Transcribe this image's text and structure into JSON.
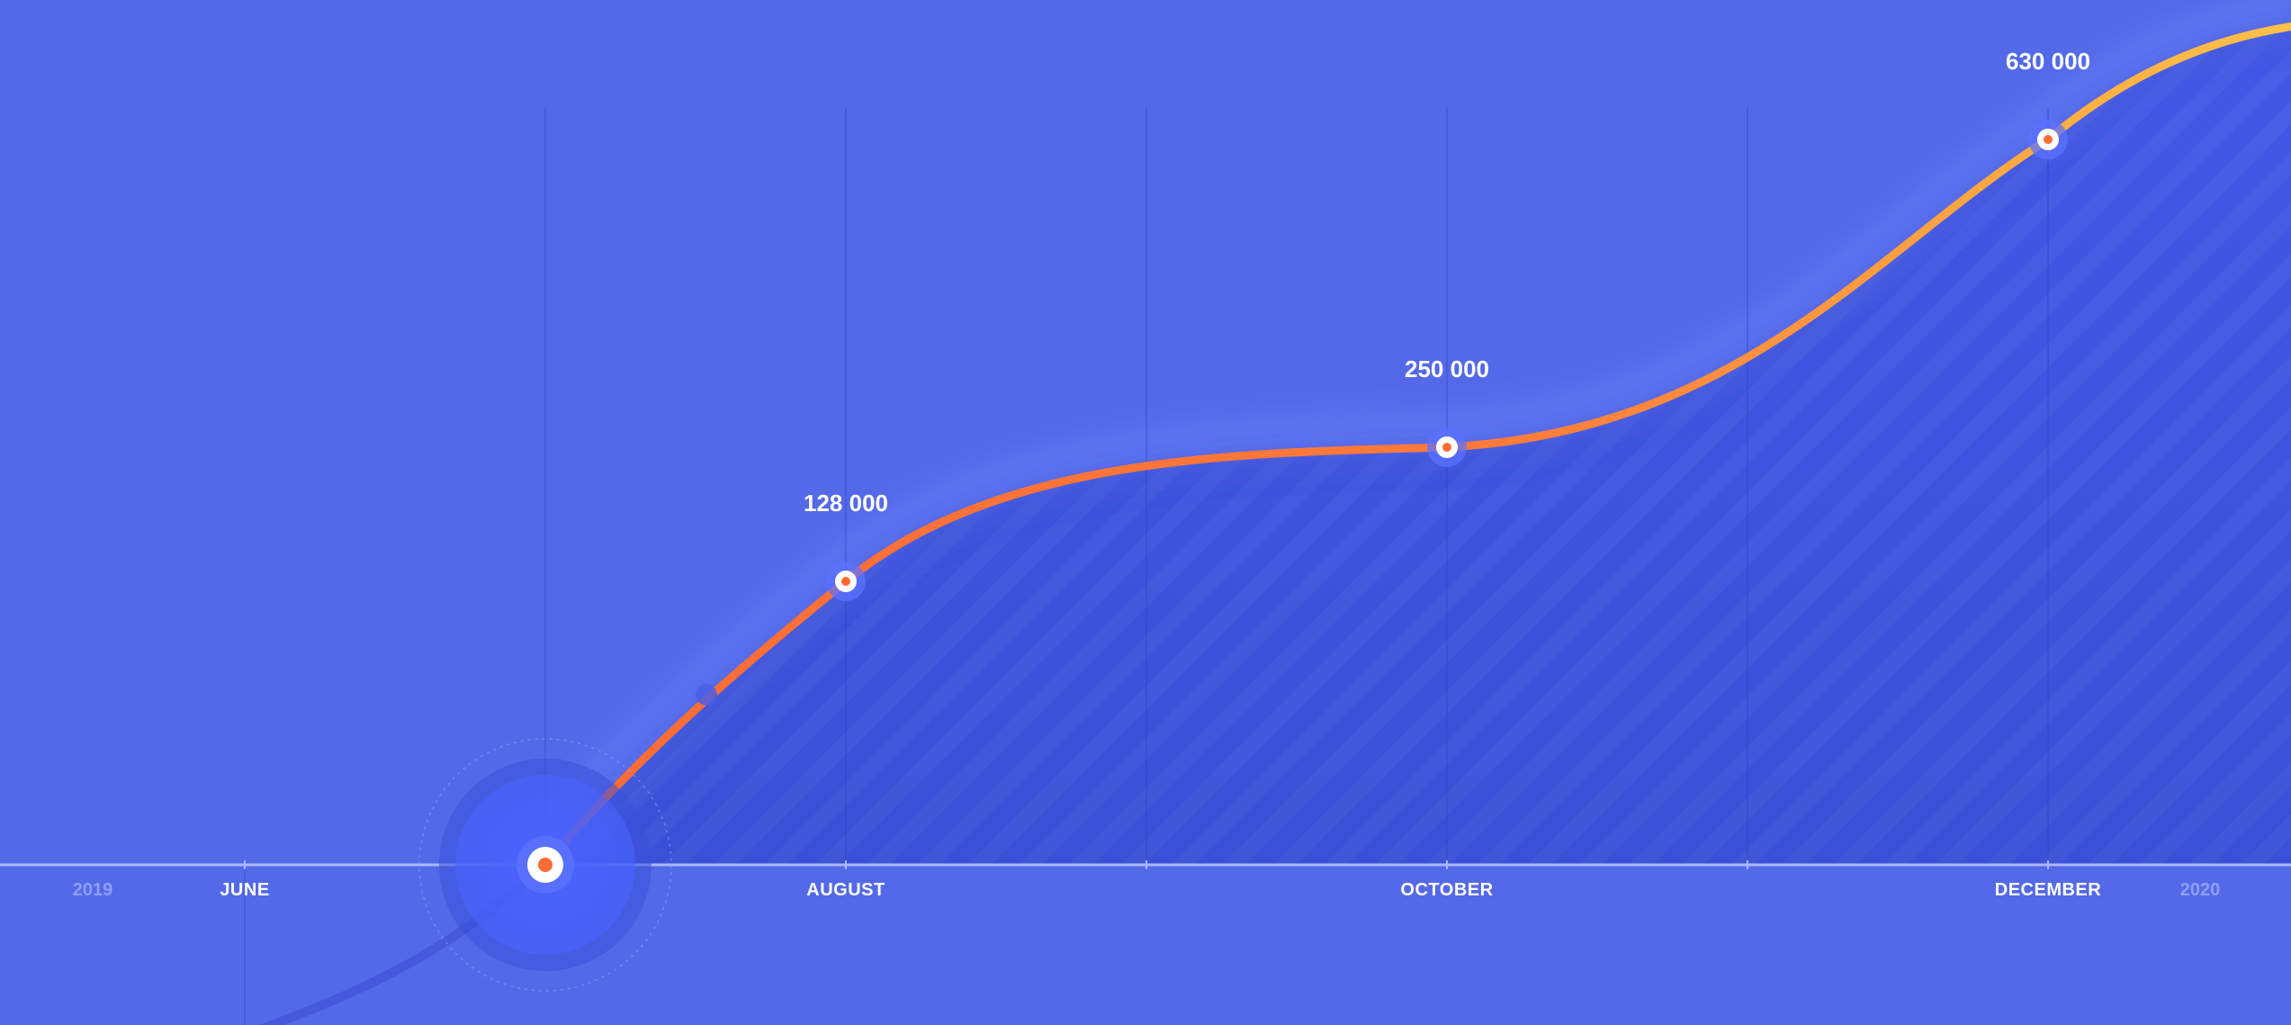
{
  "chart_data": {
    "type": "area",
    "x_axis": {
      "months": [
        "JUNE",
        "AUGUST",
        "OCTOBER",
        "DECEMBER"
      ],
      "start_year": "2019",
      "end_year": "2020"
    },
    "series": [
      {
        "points": [
          {
            "x": "July",
            "y": 0,
            "marker": "current"
          },
          {
            "x": "August",
            "y": 128000,
            "label": "128 000",
            "marker": "point"
          },
          {
            "x": "October",
            "y": 250000,
            "label": "250 000",
            "marker": "point"
          },
          {
            "x": "December",
            "y": 630000,
            "label": "630 000",
            "marker": "point"
          }
        ]
      }
    ],
    "grid": true,
    "colors": {
      "background": "#5369e8",
      "area_fill": "#3f55d9",
      "line_start": "#ff6b35",
      "line_end": "#ffc247",
      "axis": "#a9b8ff",
      "marker_ring": "#ffffff",
      "marker_core": "#ff6b35"
    }
  }
}
